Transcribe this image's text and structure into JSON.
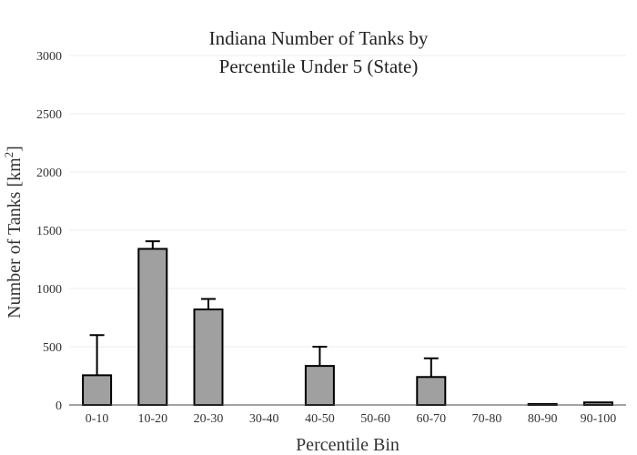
{
  "chart_data": {
    "type": "bar",
    "title_lines": [
      "Indiana Number of Tanks by",
      "Percentile Under 5 (State)"
    ],
    "xlabel": "Percentile Bin",
    "ylabel": "Number of Tanks  [km",
    "ylabel_sup": "2",
    "ylabel_close": "]",
    "categories": [
      "0-10",
      "10-20",
      "20-30",
      "30-40",
      "40-50",
      "50-60",
      "60-70",
      "70-80",
      "80-90",
      "90-100"
    ],
    "values": [
      255,
      1340,
      820,
      0,
      335,
      0,
      240,
      0,
      8,
      22
    ],
    "error_upper": [
      345,
      65,
      90,
      0,
      165,
      0,
      160,
      0,
      0,
      0
    ],
    "ylim": [
      0,
      3000
    ],
    "yticks": [
      0,
      500,
      1000,
      1500,
      2000,
      2500,
      3000
    ],
    "grid": true,
    "bar_color": "#a0a0a0",
    "edge_color": "#000000"
  }
}
